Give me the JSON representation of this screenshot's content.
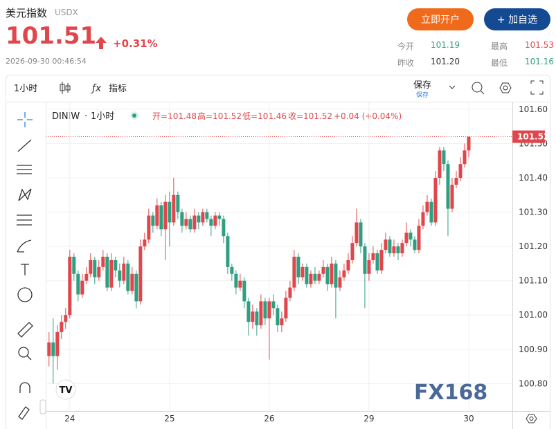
{
  "header": {
    "title": "美元指数",
    "code": "USDX",
    "price": "101.51",
    "change": "+0.31%",
    "time": "2026-09-30 00:46:54",
    "buttons": [
      "立即开户",
      "+ 加自选"
    ],
    "stats": [
      {
        "label": "今开",
        "value": "101.19"
      },
      {
        "label": "最高",
        "value": "101.53"
      },
      {
        "label": "昨收",
        "value": "101.20"
      },
      {
        "label": "最低",
        "value": "101.16"
      }
    ]
  },
  "toolbar": {
    "interval": "1小时",
    "indicators": "指标",
    "save": "保存",
    "save_sub": "保存"
  },
  "logos": {
    "watermark": "FX168",
    "tv": "TV"
  },
  "chart_data": {
    "type": "candlestick",
    "symbol": "DINIW",
    "interval": "1小时",
    "ohlc_labels": [
      "开=101.48",
      "高=101.52",
      "低=101.46",
      "收=101.52"
    ],
    "change_label": "+0.04 (+0.04%)",
    "up_color": "#e0474c",
    "down_color": "#2e9f80",
    "grid": true,
    "last_price_line": true,
    "open": [
      100.88,
      100.92,
      100.88,
      100.95,
      100.98,
      101.0,
      101.17,
      101.12,
      101.06,
      101.1,
      101.12,
      101.16,
      101.11,
      101.14,
      101.17,
      101.08,
      101.16,
      101.13,
      101.1,
      101.15,
      101.07,
      101.12,
      101.04,
      101.2,
      101.22,
      101.29,
      101.26,
      101.32,
      101.25,
      101.33,
      101.27,
      101.35,
      101.3,
      101.26,
      101.28,
      101.25,
      101.29,
      101.27,
      101.3,
      101.28,
      101.26,
      101.29,
      101.28,
      101.23,
      101.14,
      101.12,
      101.08,
      101.1,
      101.04,
      100.98,
      101.01,
      100.97,
      101.04,
      100.99,
      101.04,
      101.02,
      100.97,
      100.99,
      101.05,
      101.08,
      101.17,
      101.11,
      101.14,
      101.09,
      101.12,
      101.1,
      101.12,
      101.14,
      101.09,
      101.15,
      101.08,
      101.11,
      101.13,
      101.16,
      101.21,
      101.27,
      101.2,
      101.12,
      101.16,
      101.18,
      101.13,
      101.19,
      101.22,
      101.18,
      101.2,
      101.18,
      101.21,
      101.24,
      101.22,
      101.19,
      101.26,
      101.3,
      101.33,
      101.27,
      101.4,
      101.48,
      101.44,
      101.31,
      101.38,
      101.4,
      101.44,
      101.48
    ],
    "high": [
      100.95,
      100.99,
      100.97,
      101.0,
      101.02,
      101.19,
      101.18,
      101.13,
      101.12,
      101.14,
      101.18,
      101.17,
      101.16,
      101.19,
      101.18,
      101.18,
      101.17,
      101.15,
      101.17,
      101.16,
      101.14,
      101.13,
      101.22,
      101.24,
      101.31,
      101.3,
      101.34,
      101.33,
      101.35,
      101.36,
      101.4,
      101.36,
      101.31,
      101.3,
      101.29,
      101.31,
      101.3,
      101.31,
      101.31,
      101.29,
      101.3,
      101.3,
      101.29,
      101.24,
      101.15,
      101.13,
      101.12,
      101.11,
      101.05,
      101.03,
      101.02,
      101.06,
      101.05,
      101.05,
      101.06,
      101.03,
      101.01,
      101.07,
      101.1,
      101.19,
      101.18,
      101.15,
      101.15,
      101.13,
      101.14,
      101.13,
      101.16,
      101.15,
      101.17,
      101.16,
      101.13,
      101.15,
      101.18,
      101.23,
      101.31,
      101.28,
      101.21,
      101.18,
      101.2,
      101.19,
      101.21,
      101.24,
      101.23,
      101.22,
      101.21,
      101.22,
      101.27,
      101.25,
      101.23,
      101.28,
      101.32,
      101.35,
      101.34,
      101.42,
      101.49,
      101.49,
      101.45,
      101.4,
      101.42,
      101.46,
      101.5,
      101.52
    ],
    "low": [
      100.85,
      100.8,
      100.84,
      100.93,
      100.96,
      100.99,
      101.1,
      101.04,
      101.05,
      101.09,
      101.11,
      101.09,
      101.1,
      101.13,
      101.07,
      101.07,
      101.11,
      101.08,
      101.09,
      101.06,
      101.06,
      101.02,
      101.03,
      101.19,
      101.21,
      101.24,
      101.25,
      101.23,
      101.16,
      101.2,
      101.26,
      101.28,
      101.24,
      101.25,
      101.24,
      101.24,
      101.25,
      101.26,
      101.27,
      101.23,
      101.25,
      101.26,
      101.21,
      101.12,
      101.1,
      101.06,
      101.07,
      101.02,
      100.94,
      100.96,
      100.94,
      100.96,
      100.97,
      100.87,
      101.0,
      100.95,
      100.95,
      100.98,
      101.04,
      101.07,
      101.09,
      101.1,
      101.08,
      101.08,
      101.09,
      101.09,
      101.11,
      101.07,
      101.08,
      100.99,
      101.07,
      101.1,
      101.12,
      101.15,
      101.2,
      101.18,
      101.02,
      101.1,
      101.15,
      101.12,
      101.12,
      101.18,
      101.17,
      101.17,
      101.16,
      101.17,
      101.2,
      101.2,
      101.18,
      101.18,
      101.25,
      101.29,
      101.26,
      101.26,
      101.38,
      101.42,
      101.23,
      101.3,
      101.37,
      101.39,
      101.43,
      101.46
    ],
    "close": [
      100.92,
      100.88,
      100.95,
      100.98,
      101.0,
      101.17,
      101.12,
      101.06,
      101.1,
      101.12,
      101.16,
      101.11,
      101.14,
      101.17,
      101.08,
      101.16,
      101.13,
      101.1,
      101.15,
      101.07,
      101.12,
      101.04,
      101.2,
      101.22,
      101.29,
      101.26,
      101.32,
      101.25,
      101.33,
      101.27,
      101.35,
      101.3,
      101.26,
      101.28,
      101.25,
      101.29,
      101.27,
      101.3,
      101.28,
      101.26,
      101.29,
      101.28,
      101.23,
      101.14,
      101.12,
      101.08,
      101.1,
      101.04,
      100.98,
      101.01,
      100.97,
      101.04,
      100.99,
      101.04,
      101.02,
      100.97,
      100.99,
      101.05,
      101.08,
      101.17,
      101.11,
      101.14,
      101.09,
      101.12,
      101.1,
      101.12,
      101.14,
      101.09,
      101.15,
      101.08,
      101.11,
      101.13,
      101.16,
      101.21,
      101.27,
      101.2,
      101.12,
      101.16,
      101.18,
      101.13,
      101.19,
      101.22,
      101.18,
      101.2,
      101.18,
      101.21,
      101.24,
      101.22,
      101.19,
      101.26,
      101.3,
      101.33,
      101.27,
      101.4,
      101.48,
      101.44,
      101.31,
      101.38,
      101.4,
      101.44,
      101.48,
      101.52
    ],
    "xlim": [
      -0.8,
      111.5
    ],
    "xticks": [
      {
        "value": 5,
        "label": "24"
      },
      {
        "value": 29,
        "label": "25"
      },
      {
        "value": 53,
        "label": "26"
      },
      {
        "value": 77,
        "label": "29"
      },
      {
        "value": 101,
        "label": "30"
      }
    ],
    "ylim": [
      100.72,
      101.62
    ],
    "yticks": [
      {
        "value": 100.8,
        "label": "100.80"
      },
      {
        "value": 100.9,
        "label": "100.90"
      },
      {
        "value": 101.0,
        "label": "101.00"
      },
      {
        "value": 101.1,
        "label": "101.10"
      },
      {
        "value": 101.2,
        "label": "101.20"
      },
      {
        "value": 101.3,
        "label": "101.30"
      },
      {
        "value": 101.4,
        "label": "101.40"
      },
      {
        "value": 101.5,
        "label": "101.50"
      },
      {
        "value": 101.6,
        "label": "101.60"
      }
    ]
  }
}
